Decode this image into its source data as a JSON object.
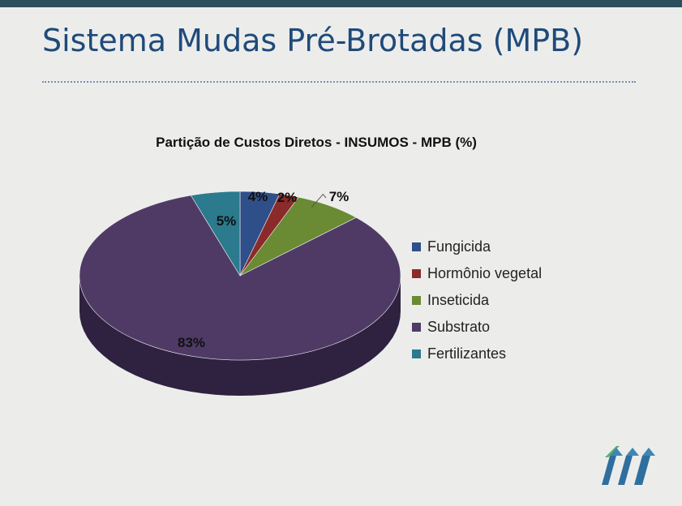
{
  "slide": {
    "title": "Sistema Mudas Pré-Brotadas (MPB)"
  },
  "chart_data": {
    "type": "pie",
    "title": "Partição de Custos Diretos - INSUMOS -  MPB (%)",
    "unit": "%",
    "categories": [
      "Fungicida",
      "Hormônio vegetal",
      "Inseticida",
      "Substrato",
      "Fertilizantes"
    ],
    "values": [
      4,
      2,
      7,
      83,
      5
    ],
    "labels": [
      "4%",
      "2%",
      "7%",
      "83%",
      "5%"
    ],
    "colors": [
      "#2f4f8a",
      "#8b2a2a",
      "#6a8a34",
      "#4f3a66",
      "#2b7a8e"
    ],
    "side_colors": [
      "#1f3561",
      "#5e1c1c",
      "#48602a",
      "#2e2240",
      "#1d5564"
    ],
    "legend_position": "right",
    "three_d": true
  },
  "logo": {
    "icon": "company-logo-icon",
    "color": "#2f6f9e",
    "accent": "#5fae6e"
  }
}
